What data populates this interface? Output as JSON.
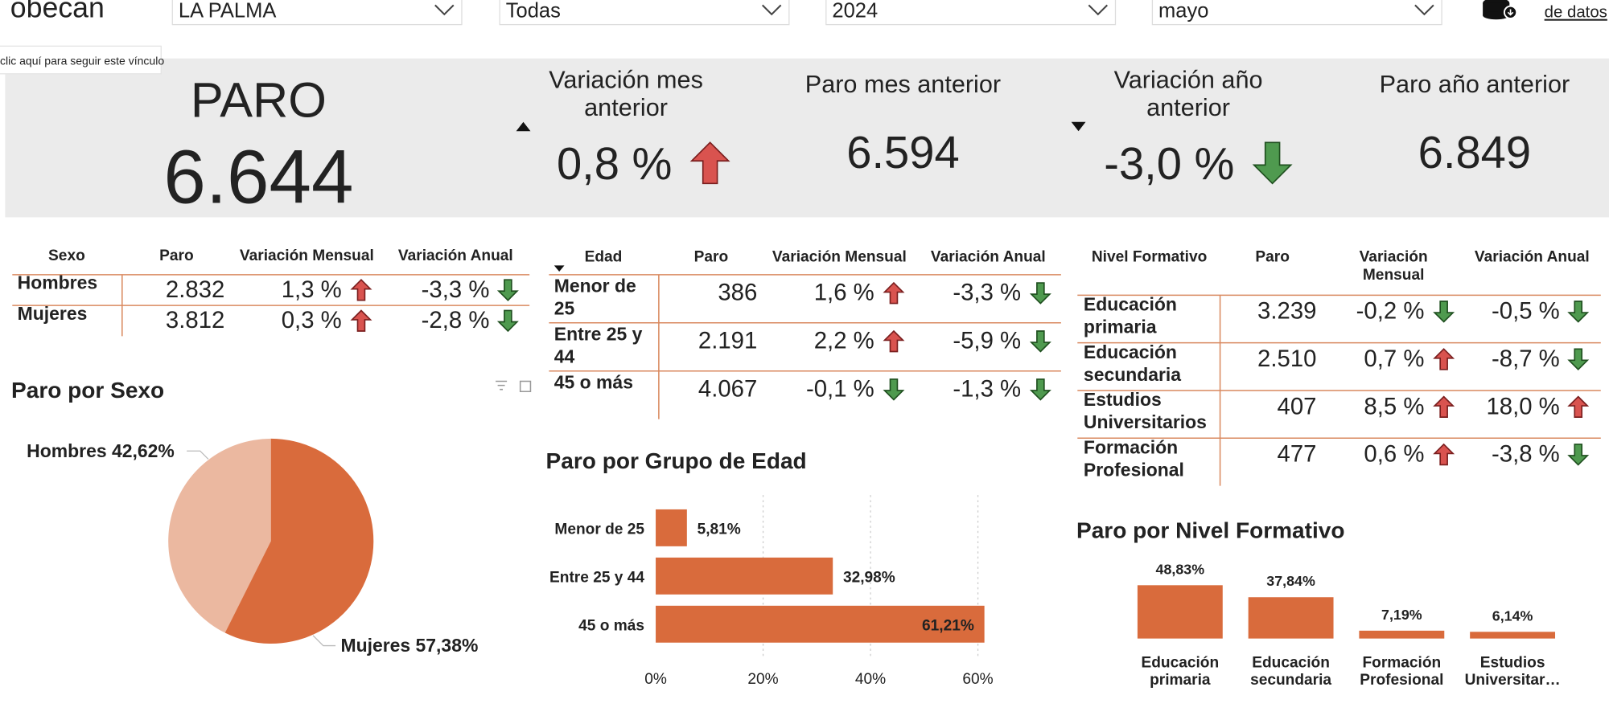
{
  "header": {
    "logo": "obecan",
    "filters": [
      "LA PALMA",
      "Todas",
      "2024",
      "mayo"
    ],
    "link": "de datos",
    "tooltip": "clic aquí para seguir este vínculo"
  },
  "kpis": {
    "main": {
      "title": "PARO",
      "value": "6.644"
    },
    "cards": [
      {
        "title": [
          "Variación mes",
          "anterior"
        ],
        "value": "0,8 %",
        "trend": "up"
      },
      {
        "title": [
          "Paro mes anterior"
        ],
        "value": "6.594"
      },
      {
        "title": [
          "Variación año",
          "anterior"
        ],
        "value": "-3,0 %",
        "trend": "down"
      },
      {
        "title": [
          "Paro año anterior"
        ],
        "value": "6.849"
      }
    ]
  },
  "tables": [
    {
      "headers": [
        [
          "Sexo"
        ],
        [
          "Paro"
        ],
        [
          "Variación Mensual"
        ],
        [
          "Variación Anual"
        ]
      ],
      "rows": [
        {
          "name": [
            "Hombres"
          ],
          "cells": [
            "2.832",
            "1,3 %",
            "-3,3 %"
          ]
        },
        {
          "name": [
            "Mujeres"
          ],
          "cells": [
            "3.812",
            "0,3 %",
            "-2,8 %"
          ]
        }
      ]
    },
    {
      "headers": [
        [
          "Edad"
        ],
        [
          "Paro"
        ],
        [
          "Variación Mensual"
        ],
        [
          "Variación Anual"
        ]
      ],
      "rows": [
        {
          "name": [
            "Menor de",
            "25"
          ],
          "cells": [
            "386",
            "1,6 %",
            "-3,3 %"
          ]
        },
        {
          "name": [
            "Entre 25 y",
            "44"
          ],
          "cells": [
            "2.191",
            "2,2 %",
            "-5,9 %"
          ]
        },
        {
          "name": [
            "45 o más"
          ],
          "cells": [
            "4.067",
            "-0,1 %",
            "-1,3 %"
          ]
        }
      ]
    },
    {
      "headers": [
        [
          "Nivel Formativo"
        ],
        [
          "Paro"
        ],
        [
          "Variación",
          "Mensual"
        ],
        [
          "Variación Anual"
        ]
      ],
      "rows": [
        {
          "name": [
            "Educación",
            "primaria"
          ],
          "cells": [
            "3.239",
            "-0,2 %",
            "-0,5 %"
          ]
        },
        {
          "name": [
            "Educación",
            "secundaria"
          ],
          "cells": [
            "2.510",
            "0,7 %",
            "-8,7 %"
          ]
        },
        {
          "name": [
            "Estudios",
            "Universitarios"
          ],
          "cells": [
            "407",
            "8,5 %",
            "18,0 %"
          ]
        },
        {
          "name": [
            "Formación",
            "Profesional"
          ],
          "cells": [
            "477",
            "0,6 %",
            "-3,8 %"
          ]
        }
      ]
    }
  ],
  "charts": [
    {
      "type": "pie",
      "title": "Paro por Sexo",
      "categories": [
        "Hombres",
        "Mujeres"
      ],
      "values": [
        42.62,
        57.38
      ],
      "value_labels": [
        "42,62%",
        "57,38%"
      ],
      "colors": [
        "#ebb8a0",
        "#d96b3c"
      ]
    },
    {
      "type": "hbar",
      "title": "Paro por Grupo de Edad",
      "categories": [
        "Menor de 25",
        "Entre 25 y 44",
        "45 o más"
      ],
      "values": [
        5.81,
        32.98,
        61.21
      ],
      "value_labels": [
        "5,81%",
        "32,98%",
        "61,21%"
      ],
      "color": "#d96b3c",
      "xlim": [
        0,
        60
      ],
      "xticks": [
        {
          "value": 0,
          "label": "0%"
        },
        {
          "value": 20,
          "label": "20%"
        },
        {
          "value": 40,
          "label": "40%"
        },
        {
          "value": 60,
          "label": "60%"
        }
      ],
      "grid": true
    },
    {
      "type": "bar",
      "title": "Paro por Nivel Formativo",
      "categories": [
        [
          "Educación",
          "primaria"
        ],
        [
          "Educación",
          "secundaria"
        ],
        [
          "Formación",
          "Profesional"
        ],
        [
          "Estudios",
          "Universitar…"
        ]
      ],
      "values": [
        48.83,
        37.84,
        7.19,
        6.14
      ],
      "value_labels": [
        "48,83%",
        "37,84%",
        "7,19%",
        "6,14%"
      ],
      "color": "#d96b3c"
    }
  ]
}
